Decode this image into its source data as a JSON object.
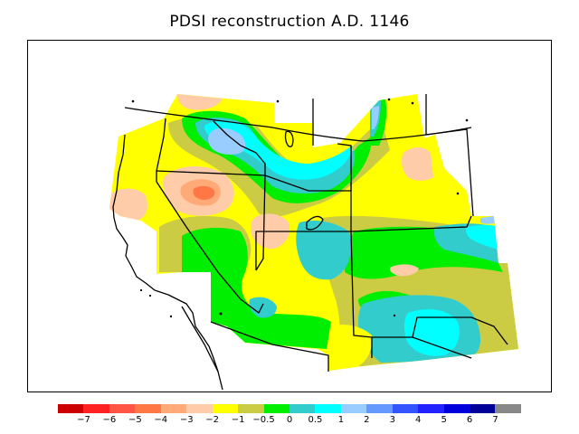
{
  "title": "PDSI reconstruction A.D. 1146",
  "colorbar": {
    "colors": [
      "#cc0000",
      "#ff2222",
      "#ff5544",
      "#ff7744",
      "#ffaa77",
      "#ffccaa",
      "#ffff00",
      "#cccc44",
      "#00ee00",
      "#33cccc",
      "#00ffff",
      "#99ccff",
      "#6699ff",
      "#3355ff",
      "#2222ff",
      "#0000dd",
      "#000099",
      "#888888"
    ],
    "labels": [
      "−7",
      "−6",
      "−5",
      "−4",
      "−3",
      "−2",
      "−1",
      "−0.5",
      "0",
      "0.5",
      "1",
      "2",
      "3",
      "4",
      "5",
      "6",
      "7"
    ]
  },
  "map_regions": [
    {
      "name": "yellow-base",
      "color": "#ffff00"
    },
    {
      "name": "olive-band",
      "color": "#cccc44"
    },
    {
      "name": "green-zone",
      "color": "#00ee00"
    },
    {
      "name": "teal-zone",
      "color": "#33cccc"
    },
    {
      "name": "cyan-zone",
      "color": "#00ffff"
    },
    {
      "name": "light-blue-zone",
      "color": "#99ccff"
    },
    {
      "name": "peach-zone",
      "color": "#ffccaa"
    },
    {
      "name": "salmon-zone",
      "color": "#ffaa77"
    },
    {
      "name": "orange-zone",
      "color": "#ff7744"
    }
  ]
}
